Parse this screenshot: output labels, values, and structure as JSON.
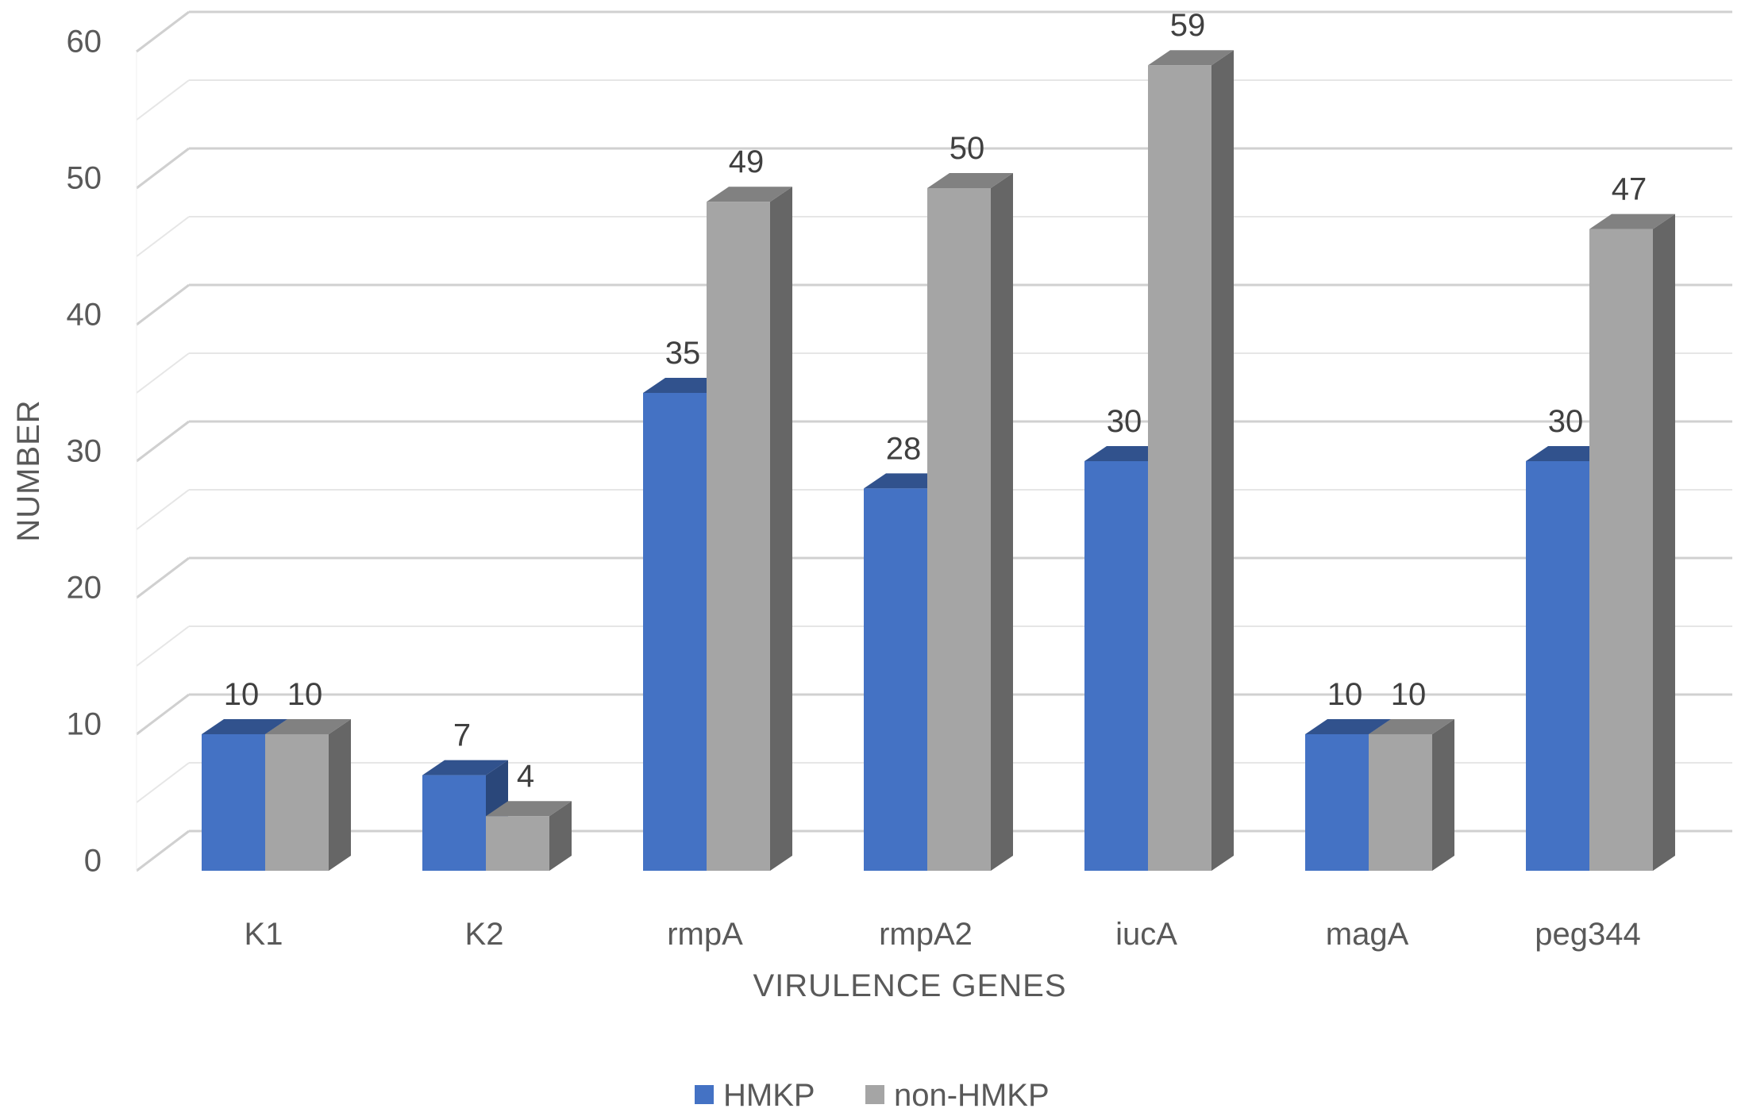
{
  "chart_data": {
    "type": "bar",
    "style": "3d-clustered-column",
    "categories": [
      "K1",
      "K2",
      "rmpA",
      "rmpA2",
      "iucA",
      "magA",
      "peg344"
    ],
    "series": [
      {
        "name": "HMKP",
        "values": [
          10,
          7,
          35,
          28,
          30,
          10,
          30
        ],
        "color": "#4472C4"
      },
      {
        "name": "non-HMKP",
        "values": [
          10,
          4,
          49,
          50,
          59,
          10,
          47
        ],
        "color": "#A5A5A5"
      }
    ],
    "xlabel": "VIRULENCE GENES",
    "ylabel": "NUMBER",
    "ylim": [
      0,
      60
    ],
    "yticks": [
      0,
      10,
      20,
      30,
      40,
      50,
      60
    ],
    "grid": true,
    "legend": "bottom-center",
    "data_labels": true
  }
}
